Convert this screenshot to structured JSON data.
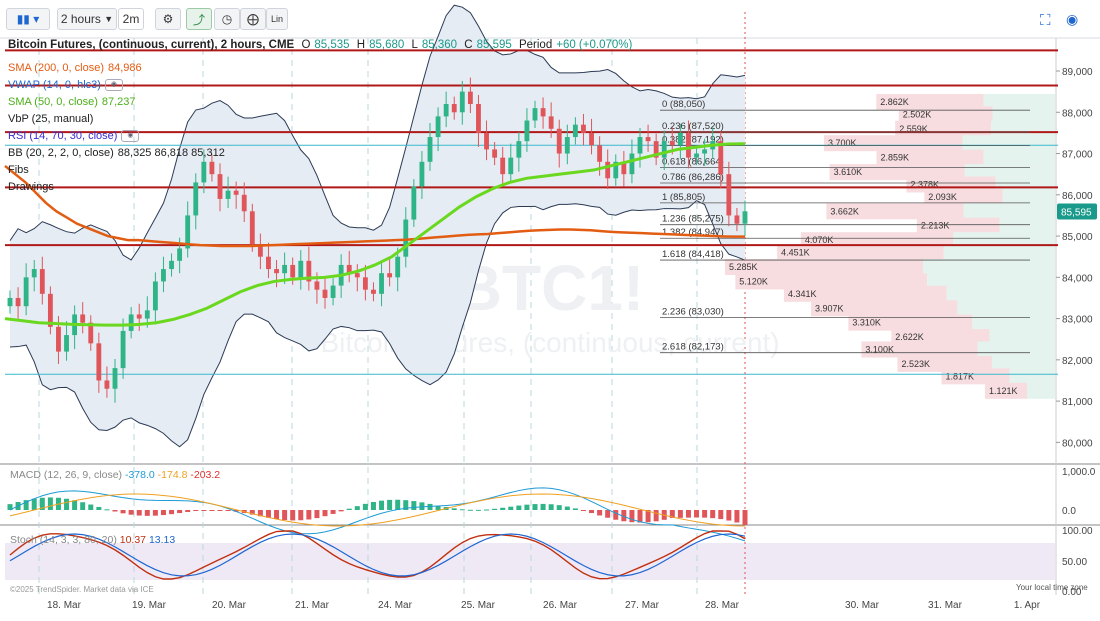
{
  "toolbar": {
    "interval": "2 hours",
    "sub_interval": "2m",
    "lin_label": "Lin"
  },
  "header": {
    "title": "Bitcoin Futures, (continuous, current), 2 hours, CME",
    "open_label": "O",
    "open": "85,535",
    "high_label": "H",
    "high": "85,680",
    "low_label": "L",
    "low": "85,360",
    "close_label": "C",
    "close": "85,595",
    "period_label": "Period",
    "period_change": "+60 (+0.070%)"
  },
  "indicators": [
    {
      "label": "SMA (200, 0, close)",
      "value": "84,986",
      "color": "#e25c12"
    },
    {
      "label": "VWAP (14, 0, hlc3)",
      "value": "",
      "color": "#1e66d0"
    },
    {
      "label": "SMA (50, 0, close)",
      "value": "87,237",
      "color": "#5fd31f"
    },
    {
      "label": "VbP (25, manual)",
      "value": "",
      "color": "#333333"
    },
    {
      "label": "RSI (14, 70, 30, close)",
      "value": "",
      "color": "#3a2ccf"
    },
    {
      "label": "BB (20, 2, 2, 0, close)",
      "value": "88,325 86,818 85,312",
      "color": "#333333"
    },
    {
      "label": "Fibs",
      "value": "",
      "color": "#333333"
    },
    {
      "label": "Drawings",
      "value": "",
      "color": "#333333"
    }
  ],
  "price_axis": {
    "ticks": [
      "89,000",
      "88,000",
      "87,000",
      "86,000",
      "85,000",
      "84,000",
      "83,000",
      "82,000",
      "81,000",
      "80,000"
    ],
    "current_price": "85,595"
  },
  "time_axis": {
    "ticks": [
      "18. Mar",
      "19. Mar",
      "20. Mar",
      "21. Mar",
      "24. Mar",
      "25. Mar",
      "26. Mar",
      "27. Mar",
      "28. Mar",
      "30. Mar",
      "31. Mar",
      "1. Apr"
    ],
    "footer_left": "©2025 TrendSpider. Market data via ICE",
    "footer_right": "Your local time zone"
  },
  "watermark": {
    "symbol": "BTC1!",
    "name": "Bitcoin Futures, (continuous, current)"
  },
  "fibs": [
    {
      "label": "0 (88,050)",
      "price": 88050
    },
    {
      "label": "0.236 (87,520)",
      "price": 87520
    },
    {
      "label": "0.382 (87,192)",
      "price": 87192
    },
    {
      "label": "0.618 (86,664)",
      "price": 86664
    },
    {
      "label": "0.786 (86,286)",
      "price": 86286
    },
    {
      "label": "1 (85,805)",
      "price": 85805
    },
    {
      "label": "1.236 (85,275)",
      "price": 85275
    },
    {
      "label": "1.382 (84,947)",
      "price": 84947
    },
    {
      "label": "1.618 (84,418)",
      "price": 84418
    },
    {
      "label": "2.236 (83,030)",
      "price": 83030
    },
    {
      "label": "2.618 (82,173)",
      "price": 82173
    }
  ],
  "horizontal_lines": [
    89500,
    88650,
    87520,
    86180,
    84780
  ],
  "cyan_lines": [
    87200,
    81650
  ],
  "volume_profile": [
    {
      "label": "2.862K",
      "price": 88250
    },
    {
      "label": "2.502K",
      "price": 87950
    },
    {
      "label": "2.559K",
      "price": 87600
    },
    {
      "label": "3.700K",
      "price": 87250
    },
    {
      "label": "2.859K",
      "price": 86900
    },
    {
      "label": "3.610K",
      "price": 86550
    },
    {
      "label": "2.378K",
      "price": 86250
    },
    {
      "label": "2.093K",
      "price": 85950
    },
    {
      "label": "3.662K",
      "price": 85600
    },
    {
      "label": "2.213K",
      "price": 85250
    },
    {
      "label": "4.070K",
      "price": 84900
    },
    {
      "label": "4.451K",
      "price": 84600
    },
    {
      "label": "5.285K",
      "price": 84250
    },
    {
      "label": "5.120K",
      "price": 83900
    },
    {
      "label": "4.341K",
      "price": 83600
    },
    {
      "label": "3.907K",
      "price": 83250
    },
    {
      "label": "3.310K",
      "price": 82900
    },
    {
      "label": "2.622K",
      "price": 82550
    },
    {
      "label": "3.100K",
      "price": 82250
    },
    {
      "label": "2.523K",
      "price": 81900
    },
    {
      "label": "1.817K",
      "price": 81600
    },
    {
      "label": "1.121K",
      "price": 81250
    }
  ],
  "macd": {
    "label": "MACD (12, 26, 9, close)",
    "values": [
      "-378.0",
      "-174.8",
      "-203.2"
    ],
    "colors": [
      "#1e9ad6",
      "#f0a020",
      "#e03030"
    ],
    "ticks": [
      "1,000.0",
      "0.0"
    ]
  },
  "stoch": {
    "label": "Stoch (14, 3, 3, 80, 20)",
    "values": [
      "10.37",
      "13.13"
    ],
    "colors": [
      "#c03010",
      "#1e66d0"
    ],
    "ticks": [
      "100.00",
      "50.00",
      "0.00"
    ]
  },
  "chart_data": {
    "type": "candlestick",
    "price_range": [
      79500,
      89800
    ],
    "closes": [
      83500,
      83300,
      84000,
      84200,
      83600,
      82800,
      82200,
      82600,
      83100,
      82900,
      82400,
      81500,
      81300,
      81800,
      82700,
      83100,
      83000,
      83200,
      83900,
      84200,
      84400,
      84700,
      85500,
      86300,
      86800,
      86500,
      85900,
      86100,
      86000,
      85600,
      84800,
      84500,
      84200,
      84100,
      84300,
      84000,
      84400,
      83900,
      83700,
      83500,
      83800,
      84300,
      84100,
      84000,
      83700,
      83600,
      84100,
      84000,
      84500,
      85400,
      86200,
      86800,
      87400,
      87900,
      88200,
      88000,
      88500,
      88200,
      87500,
      87100,
      86900,
      86500,
      86900,
      87300,
      87800,
      88100,
      87900,
      87600,
      87000,
      87400,
      87700,
      87500,
      87200,
      86800,
      86400,
      86800,
      86500,
      87000,
      87400,
      87300,
      86900,
      87300,
      87200,
      87500,
      86900,
      87000,
      87100,
      87300,
      86500,
      85500,
      85300,
      85600
    ],
    "sma200": [
      86700,
      86500,
      86300,
      86050,
      85800,
      85600,
      85450,
      85300,
      85200,
      85100,
      85000,
      84950,
      84900,
      84900,
      84880,
      84860,
      84840,
      84820,
      84800,
      84780,
      84770,
      84760,
      84760,
      84760,
      84760,
      84770,
      84780,
      84790,
      84800,
      84810,
      84820,
      84830,
      84840,
      84850,
      84860,
      84870,
      84880,
      84890,
      84900,
      84910,
      84930,
      84950,
      84970,
      84990,
      85010,
      85030,
      85040,
      85050,
      85070,
      85090,
      85110,
      85130,
      85140,
      85150,
      85160,
      85160,
      85150,
      85140,
      85120,
      85100,
      85090,
      85080,
      85070,
      85060,
      85050,
      85040,
      85030,
      85020,
      85010,
      85000,
      84990,
      84985,
      84986
    ],
    "sma50": [
      83000,
      82950,
      82900,
      82880,
      82860,
      82850,
      82840,
      82840,
      82860,
      82900,
      82980,
      83100,
      83250,
      83450,
      83650,
      83800,
      83900,
      83950,
      83980,
      84000,
      84050,
      84150,
      84300,
      84500,
      84800,
      85100,
      85400,
      85700,
      85950,
      86150,
      86300,
      86400,
      86450,
      86500,
      86550,
      86600,
      86700,
      86800,
      86900,
      87000,
      87100,
      87150,
      87200,
      87230,
      87237
    ]
  }
}
